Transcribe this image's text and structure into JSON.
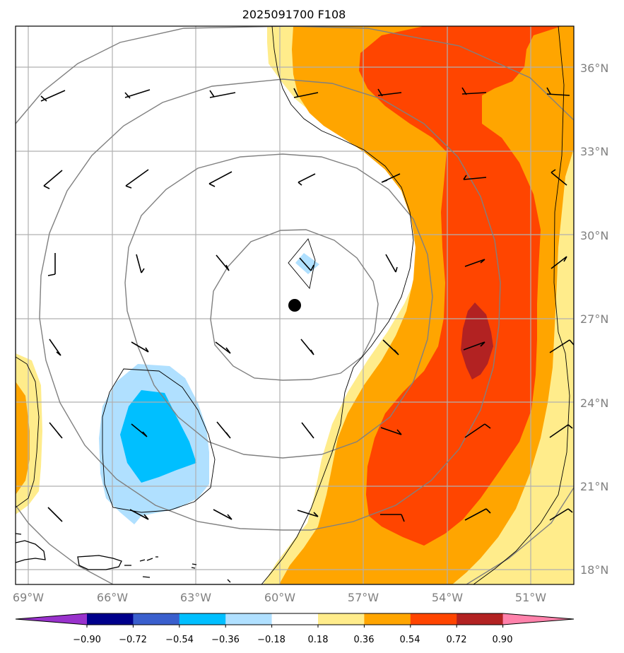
{
  "title": "2025091700 F108",
  "map": {
    "lon_range": [
      -69.5,
      -49.5
    ],
    "lat_range": [
      17.5,
      37.5
    ],
    "lon_labels": [
      "69°W",
      "66°W",
      "63°W",
      "60°W",
      "57°W",
      "54°W",
      "51°W"
    ],
    "lat_labels": [
      "36°N",
      "33°N",
      "30°N",
      "27°N",
      "24°N",
      "21°N",
      "18°N"
    ],
    "center_marker": {
      "lon": -59.5,
      "lat": 27.5
    },
    "field_colors": {
      "pos_018_036": "#ffec8b",
      "pos_036_054": "#ffa500",
      "pos_054_072": "#ff4500",
      "pos_072_090": "#b22222",
      "neg_036_018": "#b0e0ff",
      "neg_054_036": "#00bfff"
    }
  },
  "colorbar": {
    "ticks": [
      "−0.90",
      "−0.72",
      "−0.54",
      "−0.36",
      "−0.18",
      "0.18",
      "0.36",
      "0.54",
      "0.72",
      "0.90"
    ],
    "colors": [
      "#9932cc",
      "#00008b",
      "#3a5fcd",
      "#00bfff",
      "#b0e0ff",
      "#ffffff",
      "#ffec8b",
      "#ffa500",
      "#ff4500",
      "#b22222",
      "#ff82ab"
    ]
  }
}
